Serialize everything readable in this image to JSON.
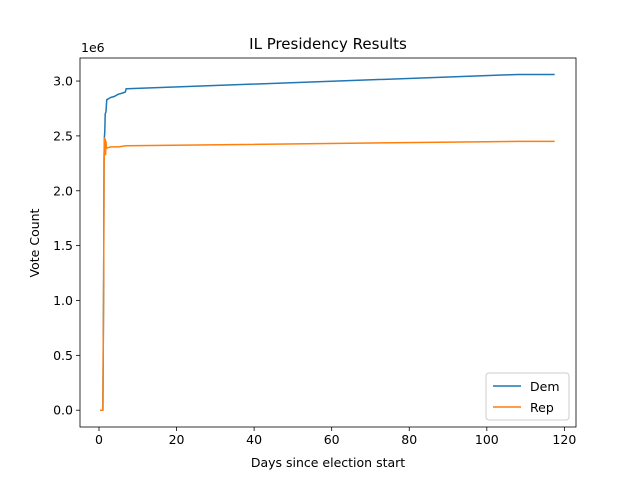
{
  "chart_data": {
    "type": "line",
    "title": "IL Presidency Results",
    "xlabel": "Days since election start",
    "ylabel": "Vote Count",
    "y_offset_label": "1e6",
    "xlim": [
      -4.9,
      123
    ],
    "ylim": [
      -0.153,
      3.21
    ],
    "x_ticks": [
      0,
      20,
      40,
      60,
      80,
      100,
      120
    ],
    "x_tick_labels": [
      "0",
      "20",
      "40",
      "60",
      "80",
      "100",
      "120"
    ],
    "y_ticks": [
      0.0,
      0.5,
      1.0,
      1.5,
      2.0,
      2.5,
      3.0
    ],
    "y_tick_labels": [
      "0.0",
      "0.5",
      "1.0",
      "1.5",
      "2.0",
      "2.5",
      "3.0"
    ],
    "y_units": "millions (×1e6)",
    "grid": false,
    "legend_position": "lower right",
    "series": [
      {
        "name": "Dem",
        "color": "#1f77b4",
        "x": [
          0.3,
          1.0,
          1.2,
          1.3,
          1.4,
          1.5,
          1.6,
          1.8,
          2.0,
          2.5,
          3.0,
          4.0,
          5.0,
          6.0,
          6.8,
          7.0,
          108.0,
          117.5
        ],
        "y": [
          0.0,
          0.0,
          1.2,
          2.3,
          2.49,
          2.55,
          2.7,
          2.72,
          2.83,
          2.84,
          2.85,
          2.86,
          2.88,
          2.89,
          2.9,
          2.93,
          3.06,
          3.06
        ]
      },
      {
        "name": "Rep",
        "color": "#ff7f0e",
        "x": [
          0.3,
          1.0,
          1.2,
          1.3,
          1.4,
          1.5,
          1.6,
          1.7,
          1.8,
          1.9,
          2.0,
          2.2,
          3.0,
          5.0,
          7.0,
          108.0,
          117.5
        ],
        "y": [
          0.0,
          0.0,
          1.2,
          2.2,
          2.48,
          2.36,
          2.47,
          2.33,
          2.45,
          2.4,
          2.39,
          2.39,
          2.4,
          2.4,
          2.41,
          2.45,
          2.45
        ]
      }
    ]
  }
}
